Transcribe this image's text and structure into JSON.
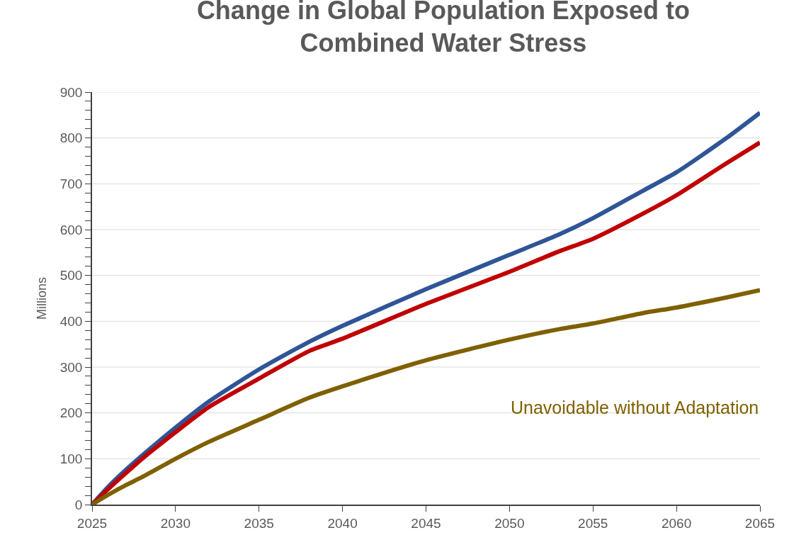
{
  "chart_data": {
    "type": "line",
    "title": "Change in Global Population Exposed to\nCombined Water Stress",
    "ylabel": "Millions",
    "x": [
      2025,
      2026,
      2027,
      2028,
      2030,
      2032,
      2035,
      2038,
      2040,
      2045,
      2050,
      2053,
      2055,
      2058,
      2060,
      2063,
      2065
    ],
    "series": [
      {
        "color": "#2f5597",
        "values": [
          0,
          40,
          75,
          107,
          168,
          225,
          295,
          355,
          390,
          470,
          545,
          590,
          625,
          685,
          725,
          800,
          855
        ]
      },
      {
        "color": "#c00000",
        "values": [
          0,
          35,
          68,
          100,
          158,
          213,
          275,
          335,
          362,
          438,
          508,
          553,
          580,
          635,
          675,
          745,
          790
        ]
      },
      {
        "name": "Unavoidable without Adaptation",
        "color": "#7f6000",
        "values": [
          0,
          22,
          42,
          60,
          100,
          137,
          185,
          233,
          258,
          315,
          360,
          383,
          395,
          418,
          430,
          452,
          468
        ]
      }
    ],
    "xlim": [
      2025,
      2065
    ],
    "xticks": [
      2025,
      2030,
      2035,
      2040,
      2045,
      2050,
      2055,
      2060,
      2065
    ],
    "ylim": [
      0,
      900
    ],
    "yticks": [
      0,
      {
        "value": 20,
        "label": null
      },
      {
        "value": 40,
        "label": null
      },
      {
        "value": 60,
        "label": null
      },
      {
        "value": 80,
        "label": null
      },
      100,
      {
        "value": 120,
        "label": null
      },
      {
        "value": 140,
        "label": null
      },
      {
        "value": 160,
        "label": null
      },
      {
        "value": 180,
        "label": null
      },
      200,
      {
        "value": 220,
        "label": null
      },
      {
        "value": 240,
        "label": null
      },
      {
        "value": 260,
        "label": null
      },
      {
        "value": 280,
        "label": null
      },
      300,
      {
        "value": 320,
        "label": null
      },
      {
        "value": 340,
        "label": null
      },
      {
        "value": 360,
        "label": null
      },
      {
        "value": 380,
        "label": null
      },
      400,
      {
        "value": 420,
        "label": null
      },
      {
        "value": 440,
        "label": null
      },
      {
        "value": 460,
        "label": null
      },
      {
        "value": 480,
        "label": null
      },
      500,
      {
        "value": 520,
        "label": null
      },
      {
        "value": 540,
        "label": null
      },
      {
        "value": 560,
        "label": null
      },
      {
        "value": 580,
        "label": null
      },
      600,
      {
        "value": 620,
        "label": null
      },
      {
        "value": 640,
        "label": null
      },
      {
        "value": 660,
        "label": null
      },
      {
        "value": 680,
        "label": null
      },
      700,
      {
        "value": 720,
        "label": null
      },
      {
        "value": 740,
        "label": null
      },
      {
        "value": 760,
        "label": null
      },
      {
        "value": 780,
        "label": null
      },
      800,
      {
        "value": 820,
        "label": null
      },
      {
        "value": 840,
        "label": null
      },
      {
        "value": 860,
        "label": null
      },
      {
        "value": 880,
        "label": null
      },
      900
    ],
    "grid": "y",
    "legend": false,
    "marker": "none",
    "line_style": "solid"
  }
}
